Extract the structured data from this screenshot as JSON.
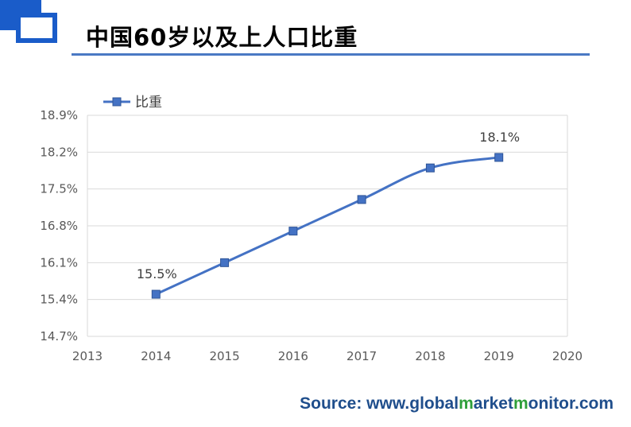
{
  "header": {
    "title": "中国60岁以及上人口比重"
  },
  "chart_data": {
    "type": "line",
    "title": "中国60岁以及上人口比重",
    "x": [
      2014,
      2015,
      2016,
      2017,
      2018,
      2019
    ],
    "series": [
      {
        "name": "比重",
        "values": [
          15.5,
          16.1,
          16.7,
          17.3,
          17.9,
          18.1
        ]
      }
    ],
    "xlim": [
      2013,
      2020
    ],
    "x_ticks": [
      "2013",
      "2014",
      "2015",
      "2016",
      "2017",
      "2018",
      "2019",
      "2020"
    ],
    "ylim": [
      14.7,
      18.9
    ],
    "y_ticks": [
      "14.7%",
      "15.4%",
      "16.1%",
      "16.8%",
      "17.5%",
      "18.2%",
      "18.9%"
    ],
    "data_labels": [
      {
        "x": 2014,
        "text": "15.5%"
      },
      {
        "x": 2019,
        "text": "18.1%"
      }
    ],
    "legend_position": "top-left",
    "grid": true,
    "color": "#4472c4"
  },
  "source": {
    "prefix": "Source: www.",
    "parts": [
      {
        "text": "g",
        "hl": false
      },
      {
        "text": "lobal",
        "hl": false
      },
      {
        "text": "m",
        "hl": true
      },
      {
        "text": "arket",
        "hl": false
      },
      {
        "text": "m",
        "hl": true
      },
      {
        "text": "o",
        "hl": false
      },
      {
        "text": "nitor.com",
        "hl": false
      }
    ]
  }
}
